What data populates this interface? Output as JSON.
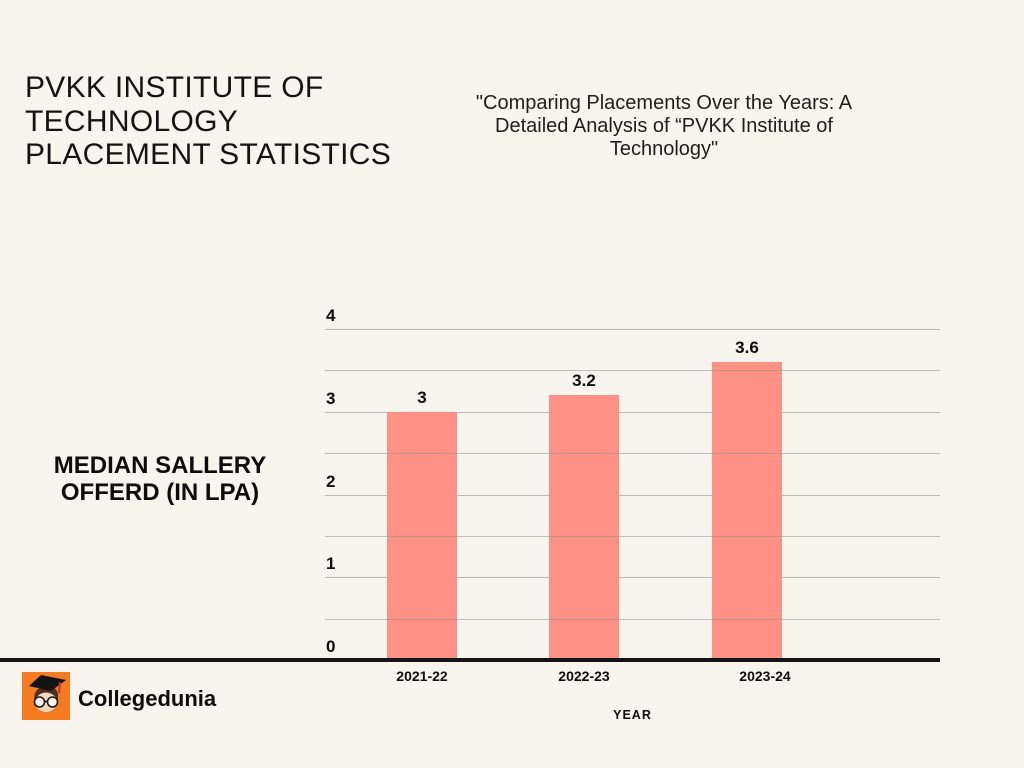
{
  "page": {
    "background": "#F8F4EE"
  },
  "header": {
    "title_lines": [
      "PVKK INSTITUTE OF",
      "TECHNOLOGY",
      "PLACEMENT STATISTICS"
    ],
    "subtitle_lines": [
      "\"Comparing Placements Over the Years: A",
      "Detailed Analysis of “PVKK Institute of",
      "Technology\""
    ]
  },
  "chart_data": {
    "type": "bar",
    "title": "PVKK INSTITUTE OF TECHNOLOGY PLACEMENT STATISTICS",
    "categories": [
      "2021-22",
      "2022-23",
      "2023-24"
    ],
    "values": [
      3,
      3.2,
      3.6
    ],
    "value_labels": [
      "3",
      "3.2",
      "3.6"
    ],
    "xlabel": "YEAR",
    "ylabel": "MEDIAN SALLERY OFFERD (IN LPA)",
    "ylabel_lines": [
      "MEDIAN SALLERY",
      "OFFERD (IN LPA)"
    ],
    "ylim": [
      0,
      4
    ],
    "yticks": [
      0,
      1,
      2,
      3,
      4
    ],
    "gridline_step": 0.5,
    "grid": "on",
    "legend": "none",
    "bar_color": "#FD9185",
    "gridline_color": "#BDBAB5",
    "axis_color": "#141414"
  },
  "footer": {
    "brand": "Collegedunia",
    "logo_icon": "collegedunia-mascot-icon",
    "logo_background": "#F57B20"
  }
}
